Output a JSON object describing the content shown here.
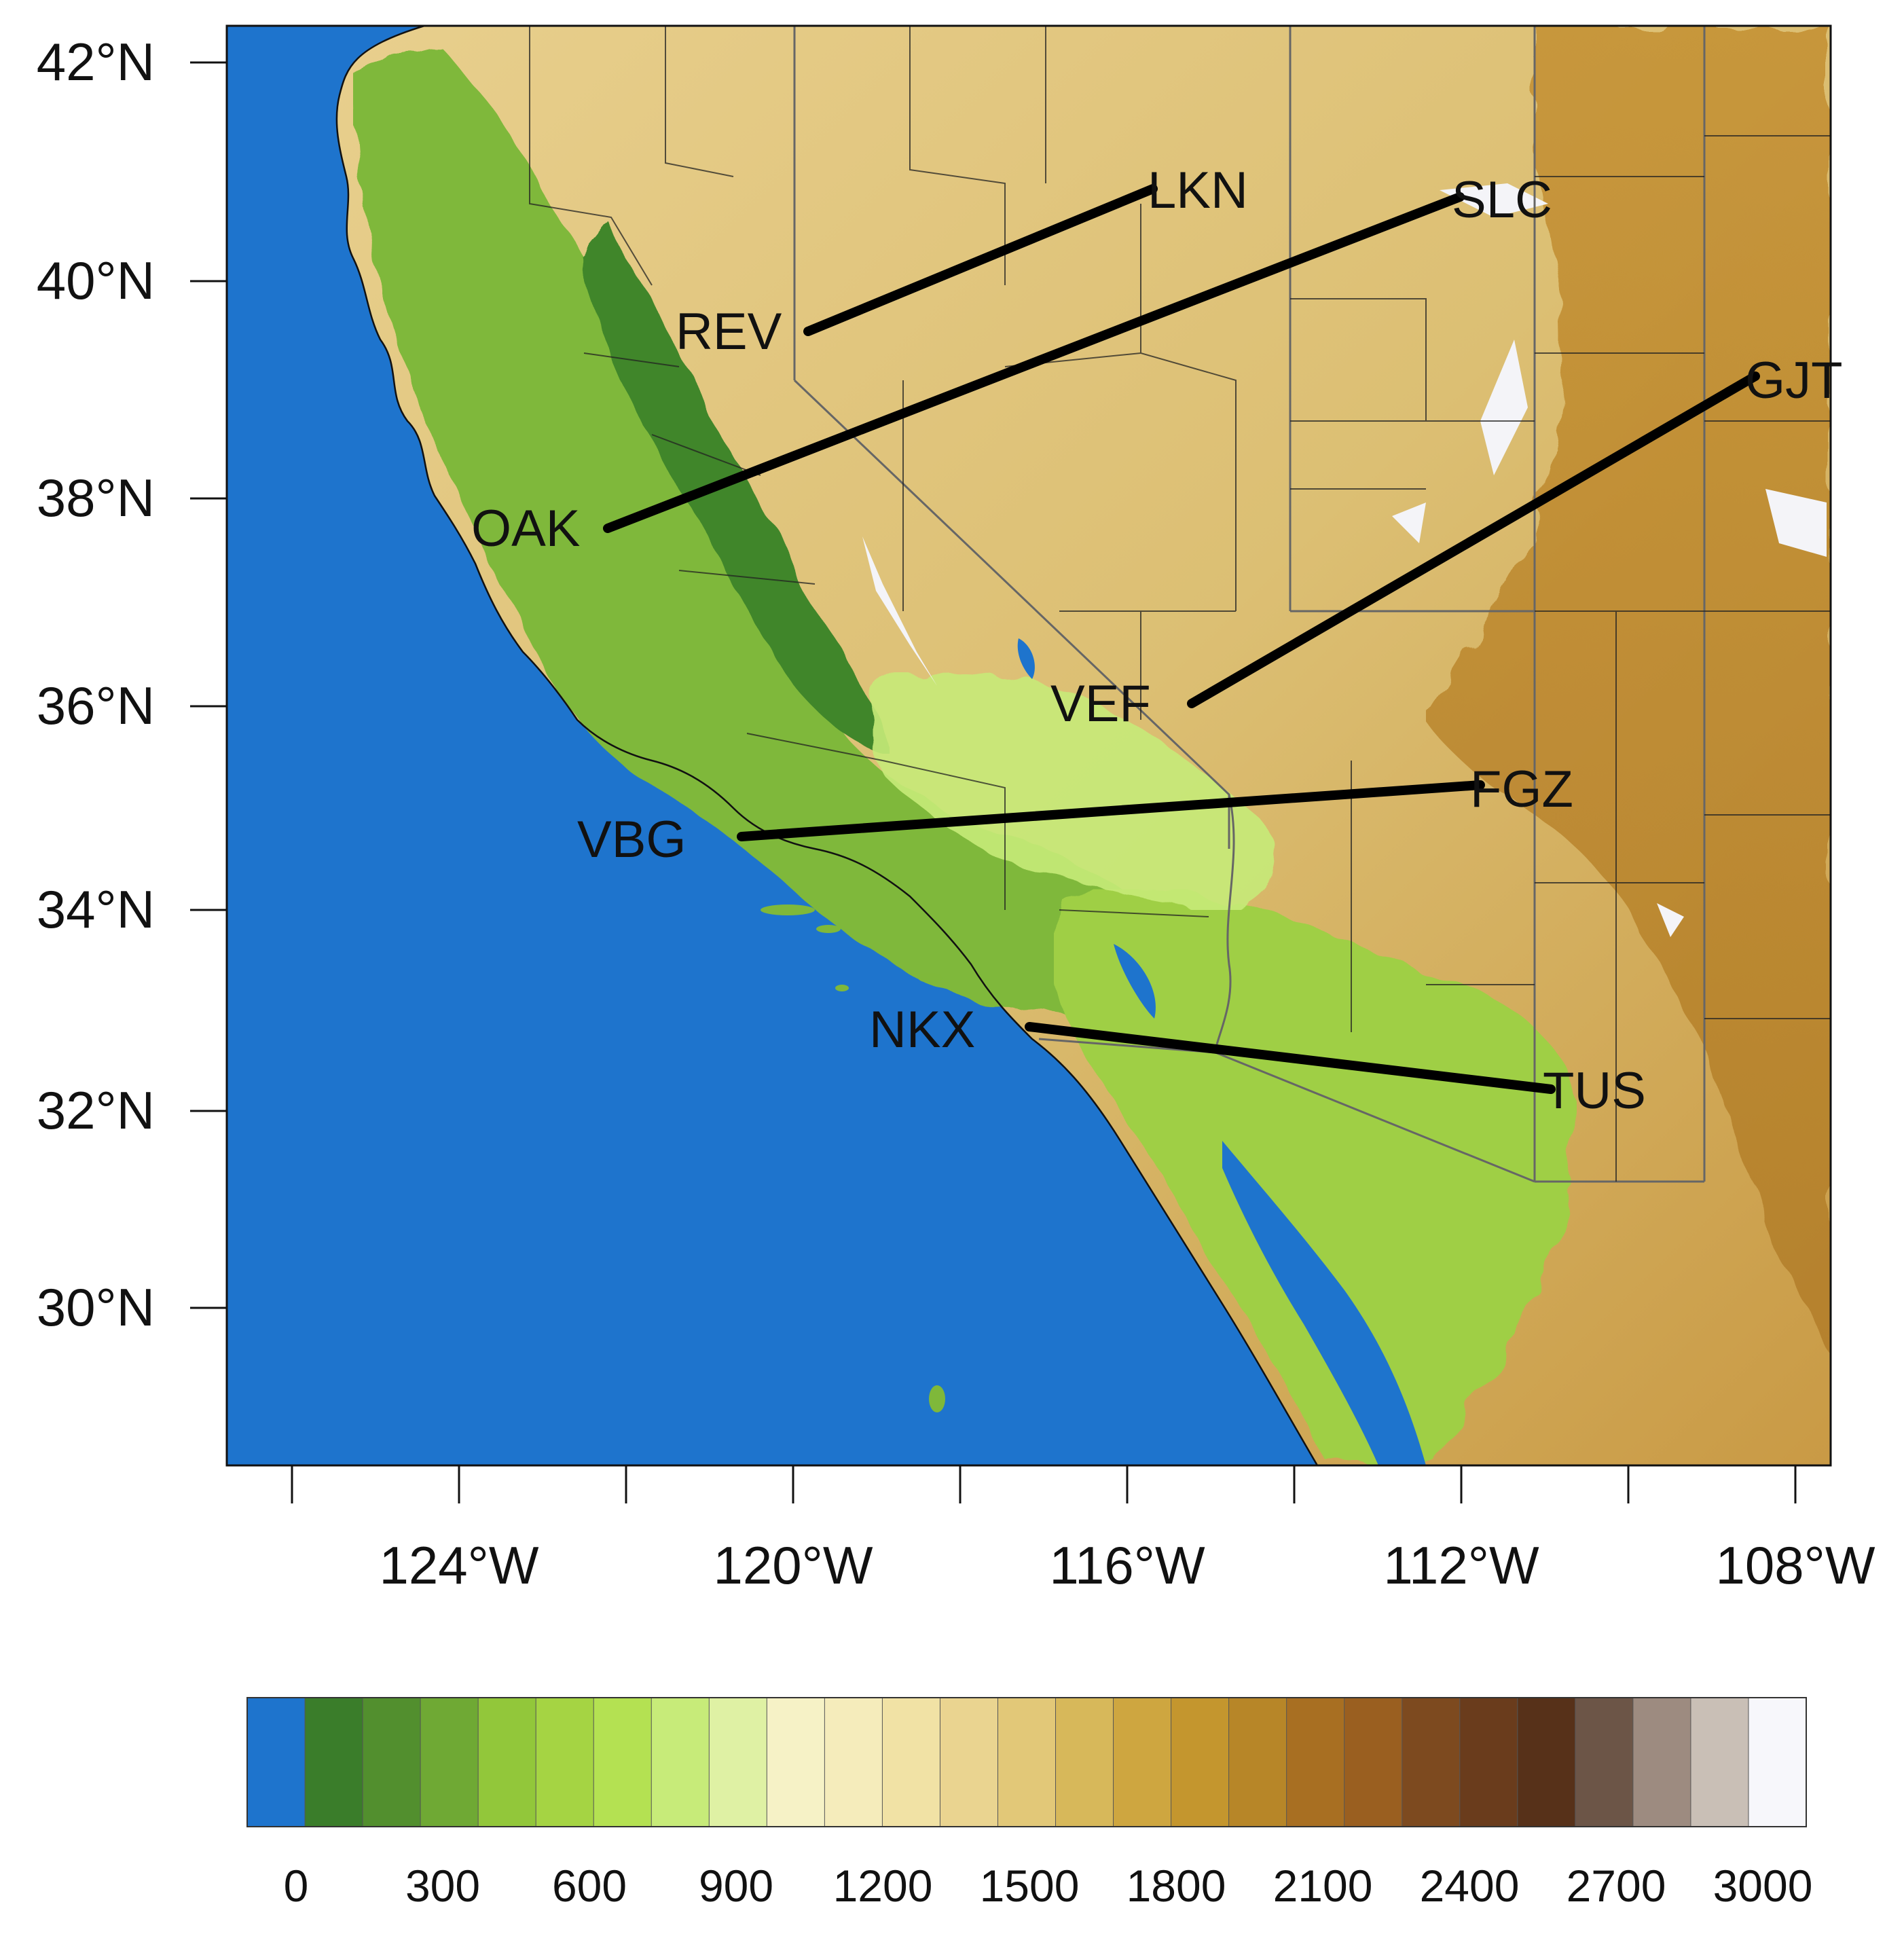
{
  "map": {
    "lat_ticks": [
      "42°N",
      "40°N",
      "38°N",
      "36°N",
      "34°N",
      "32°N",
      "30°N"
    ],
    "lon_ticks": [
      "124°W",
      "120°W",
      "116°W",
      "112°W",
      "108°W"
    ],
    "extent": {
      "lon_min": -126.8,
      "lon_max": -107.5,
      "lat_min": 28.0,
      "lat_max": 42.3
    }
  },
  "transects": [
    {
      "from": "REV",
      "to": "LKN",
      "from_lonlat": [
        -119.8,
        39.5
      ],
      "to_lonlat": [
        -115.7,
        40.8
      ]
    },
    {
      "from": "OAK",
      "to": "SLC",
      "from_lonlat": [
        -122.2,
        37.7
      ],
      "to_lonlat": [
        -111.9,
        40.8
      ]
    },
    {
      "from": "VEF",
      "to": "GJT",
      "from_lonlat": [
        -115.2,
        36.0
      ],
      "to_lonlat": [
        -108.5,
        39.1
      ]
    },
    {
      "from": "VBG",
      "to": "FGZ",
      "from_lonlat": [
        -120.6,
        34.7
      ],
      "to_lonlat": [
        -111.7,
        35.2
      ]
    },
    {
      "from": "NKX",
      "to": "TUS",
      "from_lonlat": [
        -117.1,
        32.8
      ],
      "to_lonlat": [
        -110.9,
        32.2
      ]
    }
  ],
  "stations": [
    {
      "id": "LKN",
      "label": "LKN"
    },
    {
      "id": "SLC",
      "label": "SLC"
    },
    {
      "id": "REV",
      "label": "REV"
    },
    {
      "id": "GJT",
      "label": "GJT"
    },
    {
      "id": "OAK",
      "label": "OAK"
    },
    {
      "id": "VEF",
      "label": "VEF"
    },
    {
      "id": "FGZ",
      "label": "FGZ"
    },
    {
      "id": "VBG",
      "label": "VBG"
    },
    {
      "id": "NKX",
      "label": "NKX"
    },
    {
      "id": "TUS",
      "label": "TUS"
    }
  ],
  "colorbar": {
    "ticks": [
      "0",
      "300",
      "600",
      "900",
      "1200",
      "1500",
      "1800",
      "2100",
      "2400",
      "2700",
      "3000"
    ],
    "colors": [
      "#1e74cd",
      "#3a7d2a",
      "#528f2e",
      "#6fa934",
      "#92c73a",
      "#a5d443",
      "#b4e152",
      "#c7eb79",
      "#dff1a4",
      "#f6f2c6",
      "#f5ecbb",
      "#f1e2a5",
      "#ead490",
      "#e2c878",
      "#d7b85a",
      "#cea640",
      "#c4962e",
      "#b78628",
      "#a86f22",
      "#9a5f20",
      "#7d4a1f",
      "#6a3c1c",
      "#573119",
      "#6c5547",
      "#9d8b80",
      "#c9bfb6",
      "#f7f7fb"
    ]
  }
}
